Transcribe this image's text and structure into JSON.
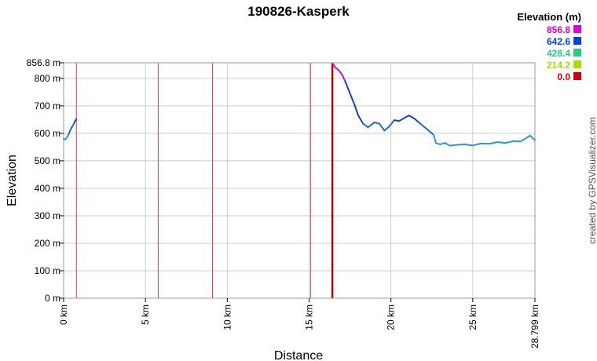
{
  "chart_data": {
    "type": "line",
    "title": "190826-Kasperk",
    "xlabel": "Distance",
    "ylabel": "Elevation",
    "xlim": [
      0,
      28.799
    ],
    "ylim": [
      0,
      856.8
    ],
    "x_ticks": [
      {
        "value": 0,
        "label": "0 km"
      },
      {
        "value": 5,
        "label": "5 km"
      },
      {
        "value": 10,
        "label": "10 km"
      },
      {
        "value": 15,
        "label": "15 km"
      },
      {
        "value": 20,
        "label": "20 km"
      },
      {
        "value": 25,
        "label": "25 km"
      },
      {
        "value": 28.799,
        "label": "28.799 km"
      }
    ],
    "y_ticks": [
      {
        "value": 0,
        "label": "0 m"
      },
      {
        "value": 100,
        "label": "100 m"
      },
      {
        "value": 200,
        "label": "200 m"
      },
      {
        "value": 300,
        "label": "300 m"
      },
      {
        "value": 400,
        "label": "400 m"
      },
      {
        "value": 500,
        "label": "500 m"
      },
      {
        "value": 600,
        "label": "600 m"
      },
      {
        "value": 700,
        "label": "700 m"
      },
      {
        "value": 800,
        "label": "800 m"
      },
      {
        "value": 856.8,
        "label": "856.8 m"
      }
    ],
    "grid": true,
    "legend": {
      "title": "Elevation (m)",
      "placement": "top-right",
      "entries": [
        {
          "label": "856.8",
          "color": "#dd00dd"
        },
        {
          "label": "642.6",
          "color": "#0044dd"
        },
        {
          "label": "428.4",
          "color": "#22cc88"
        },
        {
          "label": "214.2",
          "color": "#aadd00"
        },
        {
          "label": "0.0",
          "color": "#cc0000"
        }
      ]
    },
    "segment_breaks": [
      {
        "x": 0.78
      },
      {
        "x": 5.78
      },
      {
        "x": 9.1
      },
      {
        "x": 15.1
      },
      {
        "x": 16.42
      }
    ],
    "series": [
      {
        "x": [
          0,
          0.1,
          0.2,
          0.3,
          0.4,
          0.5,
          0.6,
          0.7,
          0.78
        ],
        "y": [
          580,
          578,
          585,
          596,
          610,
          622,
          632,
          645,
          652
        ]
      },
      {
        "x": [
          16.45,
          16.6,
          16.8,
          17.0,
          17.2,
          17.5,
          17.8,
          18.0,
          18.3,
          18.6,
          19.0,
          19.3,
          19.6,
          19.9,
          20.2,
          20.5,
          20.8,
          21.1,
          21.4,
          21.7,
          22.0,
          22.3,
          22.6,
          22.75,
          23.0,
          23.3,
          23.6,
          24.0,
          24.5,
          25.0,
          25.5,
          26.0,
          26.5,
          27.0,
          27.5,
          27.9,
          28.2,
          28.5,
          28.799
        ],
        "y": [
          853,
          840,
          830,
          815,
          790,
          745,
          700,
          665,
          635,
          622,
          640,
          635,
          610,
          625,
          648,
          645,
          655,
          665,
          655,
          640,
          625,
          610,
          595,
          565,
          560,
          565,
          555,
          558,
          560,
          556,
          563,
          562,
          568,
          565,
          572,
          570,
          580,
          592,
          575
        ]
      }
    ],
    "credit": "created by GPSVisualizer.com"
  }
}
